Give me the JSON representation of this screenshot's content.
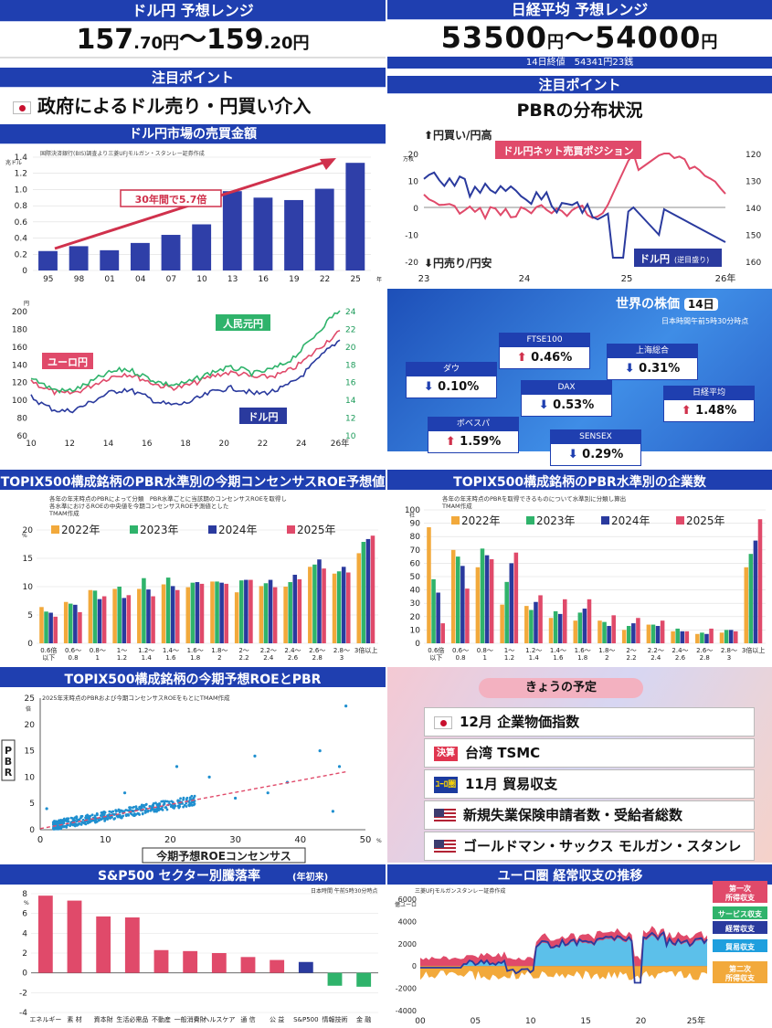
{
  "p1": {
    "title": "ドル円 予想レンジ",
    "range_a": "157",
    "range_a2": ".70円",
    "sep": "～",
    "range_b": "159",
    "range_b2": ".20円",
    "point_head": "注目ポイント",
    "point": "政府によるドル売り・円買い介入",
    "chart_title": "ドル円市場の売買金額"
  },
  "p2": {
    "title": "日経平均 予想レンジ",
    "range": "53500",
    "yen1": "円",
    "sep": "～",
    "range2": "54000",
    "yen2": "円",
    "sub": "14日終値　54341円23銭",
    "point_head": "注目ポイント",
    "point": "PBRの分布状況"
  },
  "chart1": {
    "type": "bar",
    "source": "国際決済銀行(BIS)調査より三菱UFJモルガン・スタンレー証券作成",
    "yunit": "兆ドル",
    "categories": [
      "95",
      "98",
      "01",
      "04",
      "07",
      "10",
      "13",
      "16",
      "19",
      "22",
      "25"
    ],
    "xunit": "年",
    "values": [
      0.24,
      0.3,
      0.25,
      0.34,
      0.44,
      0.57,
      0.98,
      0.9,
      0.87,
      1.01,
      1.33
    ],
    "ylim": [
      0,
      1.4
    ],
    "yticks": [
      "0",
      "0.2",
      "0.4",
      "0.6",
      "0.8",
      "1.0",
      "1.2",
      "1.4"
    ],
    "annotation": "30年間で5.7倍",
    "color": "#2f3fa8"
  },
  "chart2": {
    "type": "line",
    "top_left": "⬆円買い/円高",
    "bot_left": "⬇円売り/円安",
    "left_unit": "万枚",
    "yl": [
      "20",
      "10",
      "0",
      "-10",
      "-20"
    ],
    "yr": [
      "120",
      "130",
      "140",
      "150",
      "160"
    ],
    "xt": [
      "23",
      "24",
      "25",
      "26年"
    ],
    "label_a": "ドル円ネット売買ポジション",
    "label_b": "ドル円",
    "label_b2": "(逆目盛り)"
  },
  "chart3": {
    "type": "line",
    "yunit": "円",
    "yl": [
      "200",
      "180",
      "160",
      "140",
      "120",
      "100",
      "80",
      "60"
    ],
    "yr": [
      "24",
      "22",
      "20",
      "18",
      "16",
      "14",
      "12",
      "10"
    ],
    "xt": [
      "10",
      "12",
      "14",
      "16",
      "18",
      "20",
      "22",
      "24",
      "26年"
    ],
    "euro": "ユーロ円",
    "rmb": "人民元円",
    "usd": "ドル円"
  },
  "world": {
    "title": "世界の株価",
    "day": "14日",
    "time": "日本時間午前5時30分時点",
    "items": [
      {
        "n": "ダウ",
        "v": "0.10%",
        "d": "dn"
      },
      {
        "n": "FTSE100",
        "v": "0.46%",
        "d": "up"
      },
      {
        "n": "DAX",
        "v": "0.53%",
        "d": "dn"
      },
      {
        "n": "上海総合",
        "v": "0.31%",
        "d": "dn"
      },
      {
        "n": "日経平均",
        "v": "1.48%",
        "d": "up"
      },
      {
        "n": "ボベスパ",
        "v": "1.59%",
        "d": "up"
      },
      {
        "n": "SENSEX",
        "v": "0.29%",
        "d": "dn"
      }
    ]
  },
  "chart5": {
    "type": "bar",
    "title": "TOPIX500構成銘柄のPBR水準別の今期コンセンサスROE予想値",
    "note1": "各年の年末時点のPBRによって分類　PBR水準ごとに当該期のコンセンサスROEを取得し",
    "note2": "各水準におけるROEの中央値を今期コンセンサスROE予測値とした",
    "note3": "TMAM作成",
    "yunit": "%",
    "yticks": [
      "0",
      "5",
      "10",
      "15",
      "20"
    ],
    "ylim": [
      0,
      20
    ],
    "legend": [
      "2022年",
      "2023年",
      "2024年",
      "2025年"
    ],
    "colors": [
      "#f2a93b",
      "#2fb36b",
      "#2a3a9e",
      "#e04a6a"
    ],
    "categories": [
      "0.6倍以下",
      "0.6〜0.8",
      "0.8〜1",
      "1〜1.2",
      "1.2〜1.4",
      "1.4〜1.6",
      "1.6〜1.8",
      "1.8〜2",
      "2〜2.2",
      "2.2〜2.4",
      "2.4〜2.6",
      "2.6〜2.8",
      "2.8〜3",
      "3倍以上"
    ],
    "series": [
      [
        6.4,
        7.3,
        9.4,
        9.6,
        9.6,
        10.4,
        9.9,
        10.9,
        9.0,
        10.1,
        10.0,
        13.5,
        12.3,
        15.9
      ],
      [
        5.6,
        7.0,
        9.3,
        10.0,
        11.5,
        11.6,
        10.7,
        10.9,
        11.1,
        10.6,
        10.8,
        13.9,
        12.7,
        17.9
      ],
      [
        5.4,
        6.8,
        7.8,
        8.0,
        9.5,
        10.1,
        10.8,
        10.7,
        11.2,
        11.2,
        12.1,
        14.8,
        13.5,
        18.4
      ],
      [
        4.7,
        5.5,
        8.3,
        8.5,
        8.3,
        9.4,
        10.5,
        10.5,
        11.2,
        9.9,
        11.3,
        13.2,
        12.5,
        19.0
      ]
    ],
    "xlabels": [
      [
        "0.6倍",
        "以下"
      ],
      [
        "0.6〜",
        "0.8"
      ],
      [
        "0.8〜",
        "1"
      ],
      [
        "1〜",
        "1.2"
      ],
      [
        "1.2〜",
        "1.4"
      ],
      [
        "1.4〜",
        "1.6"
      ],
      [
        "1.6〜",
        "1.8"
      ],
      [
        "1.8〜",
        "2"
      ],
      [
        "2〜",
        "2.2"
      ],
      [
        "2.2〜",
        "2.4"
      ],
      [
        "2.4〜",
        "2.6"
      ],
      [
        "2.6〜",
        "2.8"
      ],
      [
        "2.8〜",
        "3"
      ],
      [
        "3倍以上",
        ""
      ]
    ]
  },
  "chart6": {
    "type": "bar",
    "title": "TOPIX500構成銘柄のPBR水準別の企業数",
    "note1": "各年の年末時点のPBRを取得できるものについて水準別に分類し算出",
    "note2": "TMAM作成",
    "yunit": "社",
    "yticks": [
      "0",
      "10",
      "20",
      "30",
      "40",
      "50",
      "60",
      "70",
      "80",
      "90",
      "100"
    ],
    "ylim": [
      0,
      100
    ],
    "series": [
      [
        87,
        70,
        57,
        29,
        28,
        19,
        17,
        17,
        10,
        14,
        9,
        7,
        8,
        57
      ],
      [
        48,
        65,
        71,
        46,
        25,
        24,
        23,
        16,
        13,
        14,
        11,
        8,
        10,
        67
      ],
      [
        38,
        58,
        66,
        60,
        31,
        22,
        26,
        13,
        15,
        13,
        9,
        7,
        10,
        77
      ],
      [
        15,
        41,
        63,
        68,
        36,
        33,
        33,
        21,
        19,
        17,
        9,
        11,
        9,
        93
      ]
    ]
  },
  "chart7": {
    "type": "scatter",
    "title": "TOPIX500構成銘柄の今期予想ROEとPBR",
    "note": "2025年末時点のPBRおよび今期コンセンサスROEをもとにTMAM作成",
    "ylabel": "PBR",
    "yunit": "倍",
    "xunit": "%",
    "xlabel": "今期予想ROEコンセンサス",
    "yticks": [
      "0",
      "5",
      "10",
      "15",
      "20",
      "25"
    ],
    "xticks": [
      "0",
      "10",
      "20",
      "30",
      "40",
      "50"
    ],
    "xlim": [
      0,
      50
    ],
    "ylim": [
      0,
      25
    ],
    "trend": [
      [
        0,
        0.2
      ],
      [
        47,
        11
      ]
    ],
    "outliers": [
      [
        47,
        23.5
      ],
      [
        46,
        12
      ],
      [
        43,
        15
      ],
      [
        45,
        3.5
      ],
      [
        38,
        9
      ],
      [
        35,
        7
      ],
      [
        30,
        6
      ],
      [
        33,
        14
      ],
      [
        21,
        12
      ],
      [
        13,
        7
      ],
      [
        26,
        10
      ],
      [
        1,
        4
      ]
    ]
  },
  "sched": {
    "title": "きょうの予定",
    "items": [
      {
        "i": "jp",
        "t": "12月 企業物価指数"
      },
      {
        "i": "ig",
        "b": "決算",
        "t": "台湾 TSMC"
      },
      {
        "i": "eu",
        "b": "ﾕｰﾛ圏",
        "t": "11月 貿易収支"
      },
      {
        "i": "us",
        "t": "新規失業保険申請者数・受給者総数"
      },
      {
        "i": "us",
        "t": "ゴールドマン・サックス モルガン・スタンレー"
      }
    ]
  },
  "chart9": {
    "type": "bar",
    "title": "S&P500 セクター別騰落率",
    "title_sub": "(年初来)",
    "note": "日本時間 午前5時30分時点",
    "yunit": "%",
    "yticks": [
      "8",
      "6",
      "4",
      "2",
      "0",
      "-2",
      "-4"
    ],
    "ylim": [
      -4,
      8
    ],
    "categories": [
      "エネルギー",
      "素 材",
      "資本財",
      "生活必需品",
      "不動産",
      "一般消費財",
      "ヘルスケア",
      "通 信",
      "公 益",
      "S&P500",
      "情報技術",
      "金 融"
    ],
    "values": [
      7.8,
      7.3,
      5.7,
      5.6,
      2.3,
      2.2,
      2.0,
      1.6,
      1.3,
      1.1,
      -1.3,
      -1.4
    ],
    "colors": [
      "#e04a6a",
      "#e04a6a",
      "#e04a6a",
      "#e04a6a",
      "#e04a6a",
      "#e04a6a",
      "#e04a6a",
      "#e04a6a",
      "#e04a6a",
      "#2a3a9e",
      "#2fb36b",
      "#2fb36b"
    ]
  },
  "chart10": {
    "type": "area",
    "title": "ユーロ圏 経常収支の推移",
    "note": "三菱UFJモルガンスタンレー証券作成",
    "yunit": "億ユーロ",
    "yticks": [
      "6000",
      "4000",
      "2000",
      "0",
      "-2000",
      "-4000"
    ],
    "xticks": [
      "00",
      "05",
      "10",
      "15",
      "20",
      "25年"
    ],
    "legend": [
      "第一次所得収支",
      "サービス収支",
      "経常収支",
      "貿易収支",
      "第二次所得収支"
    ]
  }
}
